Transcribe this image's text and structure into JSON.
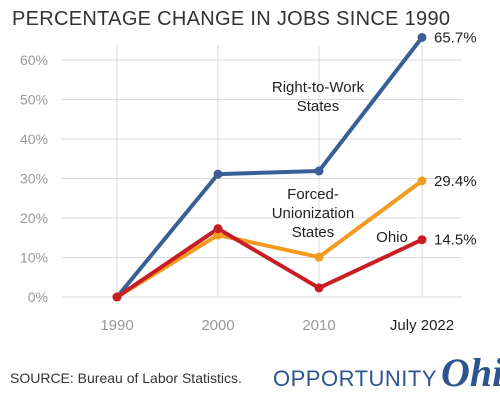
{
  "chart_data": {
    "type": "line",
    "title": "PERCENTAGE CHANGE IN JOBS SINCE 1990",
    "categories": [
      "1990",
      "2000",
      "2010",
      "July 2022"
    ],
    "yticks": [
      "0%",
      "10%",
      "20%",
      "30%",
      "40%",
      "50%",
      "60%"
    ],
    "ylim": [
      0,
      65
    ],
    "grid": true,
    "series": [
      {
        "name": "Right-to-Work States",
        "color": "#3a5f97",
        "values": [
          0,
          31.1,
          31.9,
          65.7
        ],
        "end_label": "65.7%"
      },
      {
        "name": "Forced-Unionization States",
        "color": "#f39b20",
        "values": [
          0,
          15.7,
          10.1,
          29.4
        ],
        "end_label": "29.4%"
      },
      {
        "name": "Ohio",
        "color": "#c81d24",
        "values": [
          0,
          17.3,
          2.3,
          14.5
        ],
        "end_label": "14.5%"
      }
    ]
  },
  "source": "SOURCE: Bureau of Labor Statistics.",
  "logo": {
    "word1": "OPPORTUNITY",
    "word2": "Ohio"
  }
}
